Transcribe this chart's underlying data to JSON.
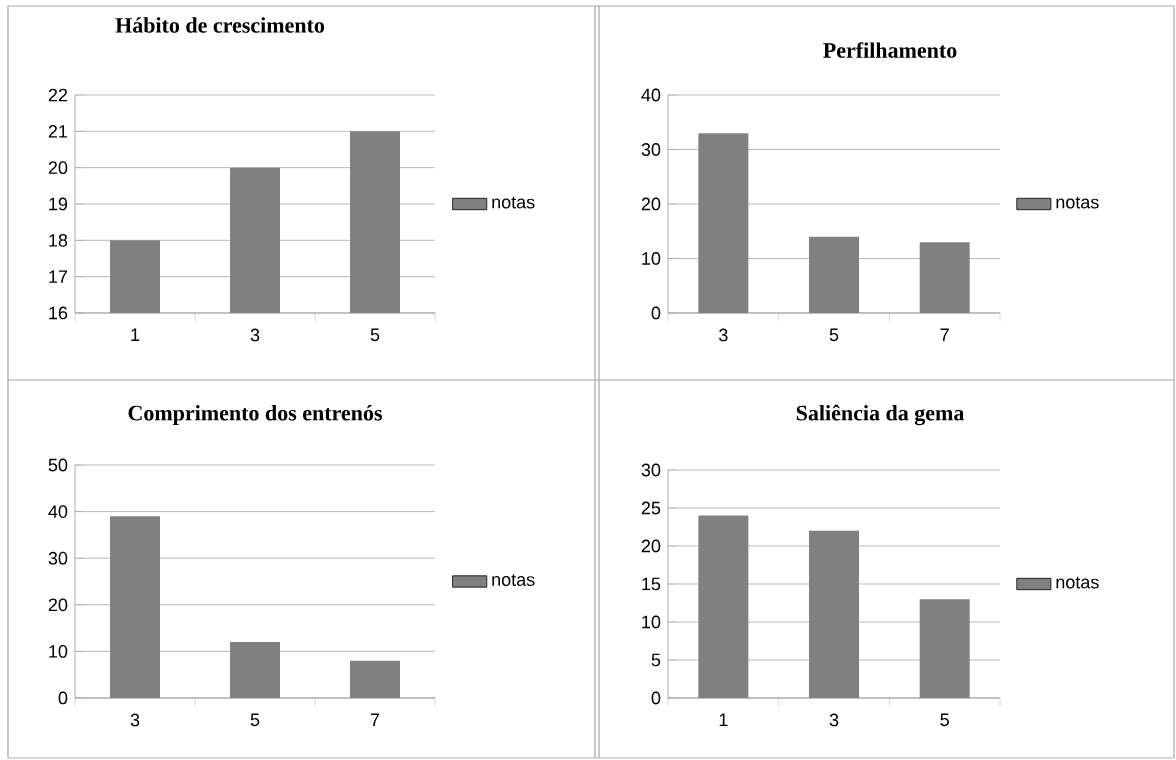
{
  "chart_data": [
    {
      "type": "bar",
      "title": "Hábito de crescimento",
      "categories": [
        "1",
        "3",
        "5"
      ],
      "series": [
        {
          "name": "notas",
          "color": "#808080",
          "values": [
            18,
            20,
            21
          ]
        }
      ],
      "ylim": [
        16,
        22
      ],
      "yticks": [
        16,
        17,
        18,
        19,
        20,
        21,
        22
      ],
      "grid": "y",
      "legend": "right"
    },
    {
      "type": "bar",
      "title": "Perfilhamento",
      "categories": [
        "3",
        "5",
        "7"
      ],
      "series": [
        {
          "name": "notas",
          "color": "#808080",
          "values": [
            33,
            14,
            13
          ]
        }
      ],
      "ylim": [
        0,
        40
      ],
      "yticks": [
        0,
        10,
        20,
        30,
        40
      ],
      "grid": "y",
      "legend": "right"
    },
    {
      "type": "bar",
      "title": "Comprimento dos entrenós",
      "categories": [
        "3",
        "5",
        "7"
      ],
      "series": [
        {
          "name": "notas",
          "color": "#808080",
          "values": [
            39,
            12,
            8
          ]
        }
      ],
      "ylim": [
        0,
        50
      ],
      "yticks": [
        0,
        10,
        20,
        30,
        40,
        50
      ],
      "grid": "y",
      "legend": "right"
    },
    {
      "type": "bar",
      "title": "Saliência da gema",
      "categories": [
        "1",
        "3",
        "5"
      ],
      "series": [
        {
          "name": "notas",
          "color": "#808080",
          "values": [
            24,
            22,
            13
          ]
        }
      ],
      "ylim": [
        0,
        30
      ],
      "yticks": [
        0,
        5,
        10,
        15,
        20,
        25,
        30
      ],
      "grid": "y",
      "legend": "right"
    }
  ]
}
